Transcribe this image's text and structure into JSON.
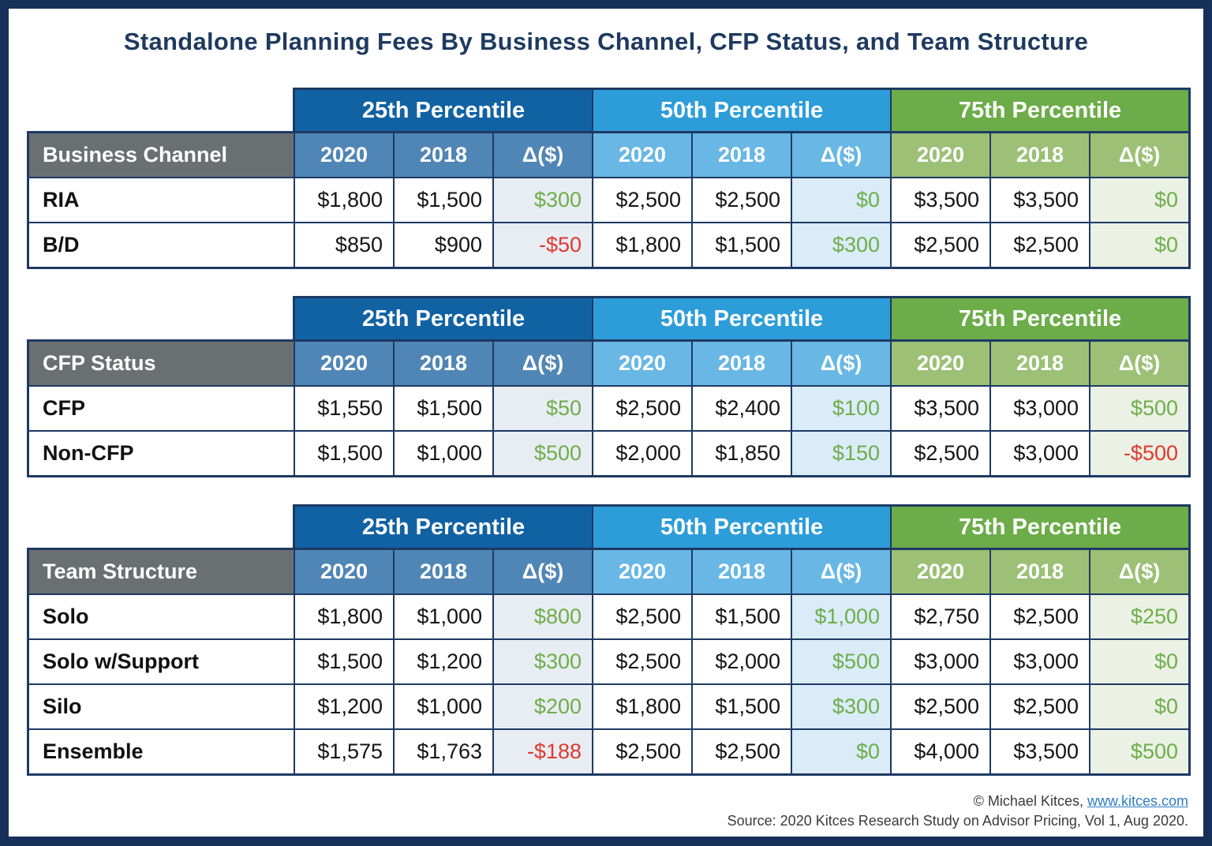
{
  "title": "Standalone Planning Fees By Business Channel, CFP Status, and Team Structure",
  "percentiles": [
    "25th Percentile",
    "50th Percentile",
    "75th Percentile"
  ],
  "col_headers": [
    "2020",
    "2018",
    "Δ($)"
  ],
  "colors": {
    "frame_navy": "#17305a",
    "border_navy": "#1e3a64",
    "band_25th": "#1162a3",
    "band_50th": "#2d9dd9",
    "band_75th": "#6cac49",
    "subheader_25th": "#5086b5",
    "subheader_50th": "#68b7e4",
    "subheader_75th": "#9cc076",
    "category_gray": "#6a6f72",
    "delta_bg_25th": "#e8edf3",
    "delta_bg_50th": "#d9ecf8",
    "delta_bg_75th": "#ebf1e5",
    "delta_positive": "#6FAD49",
    "delta_negative": "#E0392E"
  },
  "tables": [
    {
      "category": "Business Channel",
      "rows": [
        {
          "label": "RIA",
          "values": [
            "$1,800",
            "$1,500",
            "$300",
            "$2,500",
            "$2,500",
            "$0",
            "$3,500",
            "$3,500",
            "$0"
          ],
          "delta_colors": [
            "#6FAD49",
            "#6FAD49",
            "#6FAD49"
          ]
        },
        {
          "label": "B/D",
          "values": [
            "$850",
            "$900",
            "-$50",
            "$1,800",
            "$1,500",
            "$300",
            "$2,500",
            "$2,500",
            "$0"
          ],
          "delta_colors": [
            "#E0392E",
            "#6FAD49",
            "#6FAD49"
          ]
        }
      ]
    },
    {
      "category": "CFP Status",
      "rows": [
        {
          "label": "CFP",
          "values": [
            "$1,550",
            "$1,500",
            "$50",
            "$2,500",
            "$2,400",
            "$100",
            "$3,500",
            "$3,000",
            "$500"
          ],
          "delta_colors": [
            "#6FAD49",
            "#6FAD49",
            "#6FAD49"
          ]
        },
        {
          "label": "Non-CFP",
          "values": [
            "$1,500",
            "$1,000",
            "$500",
            "$2,000",
            "$1,850",
            "$150",
            "$2,500",
            "$3,000",
            "-$500"
          ],
          "delta_colors": [
            "#6FAD49",
            "#6FAD49",
            "#E0392E"
          ]
        }
      ]
    },
    {
      "category": "Team Structure",
      "rows": [
        {
          "label": "Solo",
          "values": [
            "$1,800",
            "$1,000",
            "$800",
            "$2,500",
            "$1,500",
            "$1,000",
            "$2,750",
            "$2,500",
            "$250"
          ],
          "delta_colors": [
            "#6FAD49",
            "#6FAD49",
            "#6FAD49"
          ]
        },
        {
          "label": "Solo w/Support",
          "values": [
            "$1,500",
            "$1,200",
            "$300",
            "$2,500",
            "$2,000",
            "$500",
            "$3,000",
            "$3,000",
            "$0"
          ],
          "delta_colors": [
            "#6FAD49",
            "#6FAD49",
            "#6FAD49"
          ]
        },
        {
          "label": "Silo",
          "values": [
            "$1,200",
            "$1,000",
            "$200",
            "$1,800",
            "$1,500",
            "$300",
            "$2,500",
            "$2,500",
            "$0"
          ],
          "delta_colors": [
            "#6FAD49",
            "#6FAD49",
            "#6FAD49"
          ]
        },
        {
          "label": "Ensemble",
          "values": [
            "$1,575",
            "$1,763",
            "-$188",
            "$2,500",
            "$2,500",
            "$0",
            "$4,000",
            "$3,500",
            "$500"
          ],
          "delta_colors": [
            "#E0392E",
            "#6FAD49",
            "#6FAD49"
          ]
        }
      ]
    }
  ],
  "footer": {
    "copyright": "© Michael Kitces, ",
    "link": "www.kitces.com",
    "source": "Source: 2020 Kitces Research Study on Advisor Pricing, Vol 1, Aug 2020."
  },
  "chart_data": {
    "type": "table",
    "title": "Standalone Planning Fees By Business Channel, CFP Status, and Team Structure",
    "columns": [
      "Category",
      "25th %ile 2020",
      "25th %ile 2018",
      "25th %ile Δ($)",
      "50th %ile 2020",
      "50th %ile 2018",
      "50th %ile Δ($)",
      "75th %ile 2020",
      "75th %ile 2018",
      "75th %ile Δ($)"
    ],
    "tables": [
      {
        "category": "Business Channel",
        "rows": [
          [
            "RIA",
            1800,
            1500,
            300,
            2500,
            2500,
            0,
            3500,
            3500,
            0
          ],
          [
            "B/D",
            850,
            900,
            -50,
            1800,
            1500,
            300,
            2500,
            2500,
            0
          ]
        ]
      },
      {
        "category": "CFP Status",
        "rows": [
          [
            "CFP",
            1550,
            1500,
            50,
            2500,
            2400,
            100,
            3500,
            3000,
            500
          ],
          [
            "Non-CFP",
            1500,
            1000,
            500,
            2000,
            1850,
            150,
            2500,
            3000,
            -500
          ]
        ]
      },
      {
        "category": "Team Structure",
        "rows": [
          [
            "Solo",
            1800,
            1000,
            800,
            2500,
            1500,
            1000,
            2750,
            2500,
            250
          ],
          [
            "Solo w/Support",
            1500,
            1200,
            300,
            2500,
            2000,
            500,
            3000,
            3000,
            0
          ],
          [
            "Silo",
            1200,
            1000,
            200,
            1800,
            1500,
            300,
            2500,
            2500,
            0
          ],
          [
            "Ensemble",
            1575,
            1763,
            -188,
            2500,
            2500,
            0,
            4000,
            3500,
            500
          ]
        ]
      }
    ]
  }
}
